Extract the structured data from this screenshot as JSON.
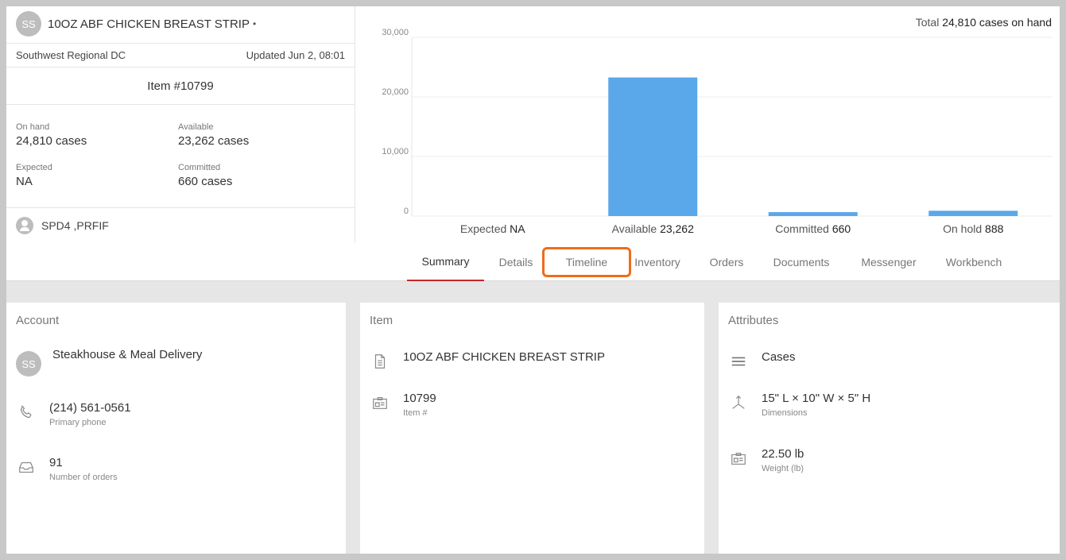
{
  "header": {
    "avatar_initials": "SS",
    "title": "10OZ ABF CHICKEN BREAST STRIP",
    "title_suffix": "•",
    "location": "Southwest Regional DC",
    "updated": "Updated Jun 2, 08:01",
    "item_number": "Item #10799"
  },
  "stats": {
    "on_hand_label": "On hand",
    "on_hand_value": "24,810 cases",
    "available_label": "Available",
    "available_value": "23,262 cases",
    "expected_label": "Expected",
    "expected_value": "NA",
    "committed_label": "Committed",
    "committed_value": "660 cases"
  },
  "owner": {
    "text": "SPD4 ,PRFIF"
  },
  "total": {
    "prefix": "Total",
    "value": "24,810 cases on hand"
  },
  "chart_data": {
    "type": "bar",
    "categories": [
      "Expected",
      "Available",
      "Committed",
      "On hold"
    ],
    "value_labels": [
      "NA",
      "23,262",
      "660",
      "888"
    ],
    "values": [
      0,
      23262,
      660,
      888
    ],
    "yticks": [
      "0",
      "10,000",
      "20,000",
      "30,000"
    ],
    "ylim": [
      0,
      30000
    ],
    "grid": true,
    "color": "#5aa7ea"
  },
  "tabs": [
    {
      "label": "Summary"
    },
    {
      "label": "Details"
    },
    {
      "label": "Timeline"
    },
    {
      "label": "Inventory"
    },
    {
      "label": "Orders"
    },
    {
      "label": "Documents"
    },
    {
      "label": "Messenger"
    },
    {
      "label": "Workbench"
    }
  ],
  "account": {
    "title": "Account",
    "avatar_initials": "SS",
    "name": "Steakhouse & Meal Delivery",
    "phone": "(214) 561-0561",
    "phone_label": "Primary phone",
    "orders": "91",
    "orders_label": "Number of orders"
  },
  "item": {
    "title": "Item",
    "name": "10OZ ABF CHICKEN BREAST STRIP",
    "number": "10799",
    "number_label": "Item #"
  },
  "attributes": {
    "title": "Attributes",
    "unit": "Cases",
    "dimensions": "15\" L × 10\" W × 5\" H",
    "dimensions_label": "Dimensions",
    "weight": "22.50 lb",
    "weight_label": "Weight (lb)"
  },
  "colors": {
    "accent": "#c62828",
    "highlight": "#ef6c1a",
    "bar": "#5aa7ea"
  }
}
